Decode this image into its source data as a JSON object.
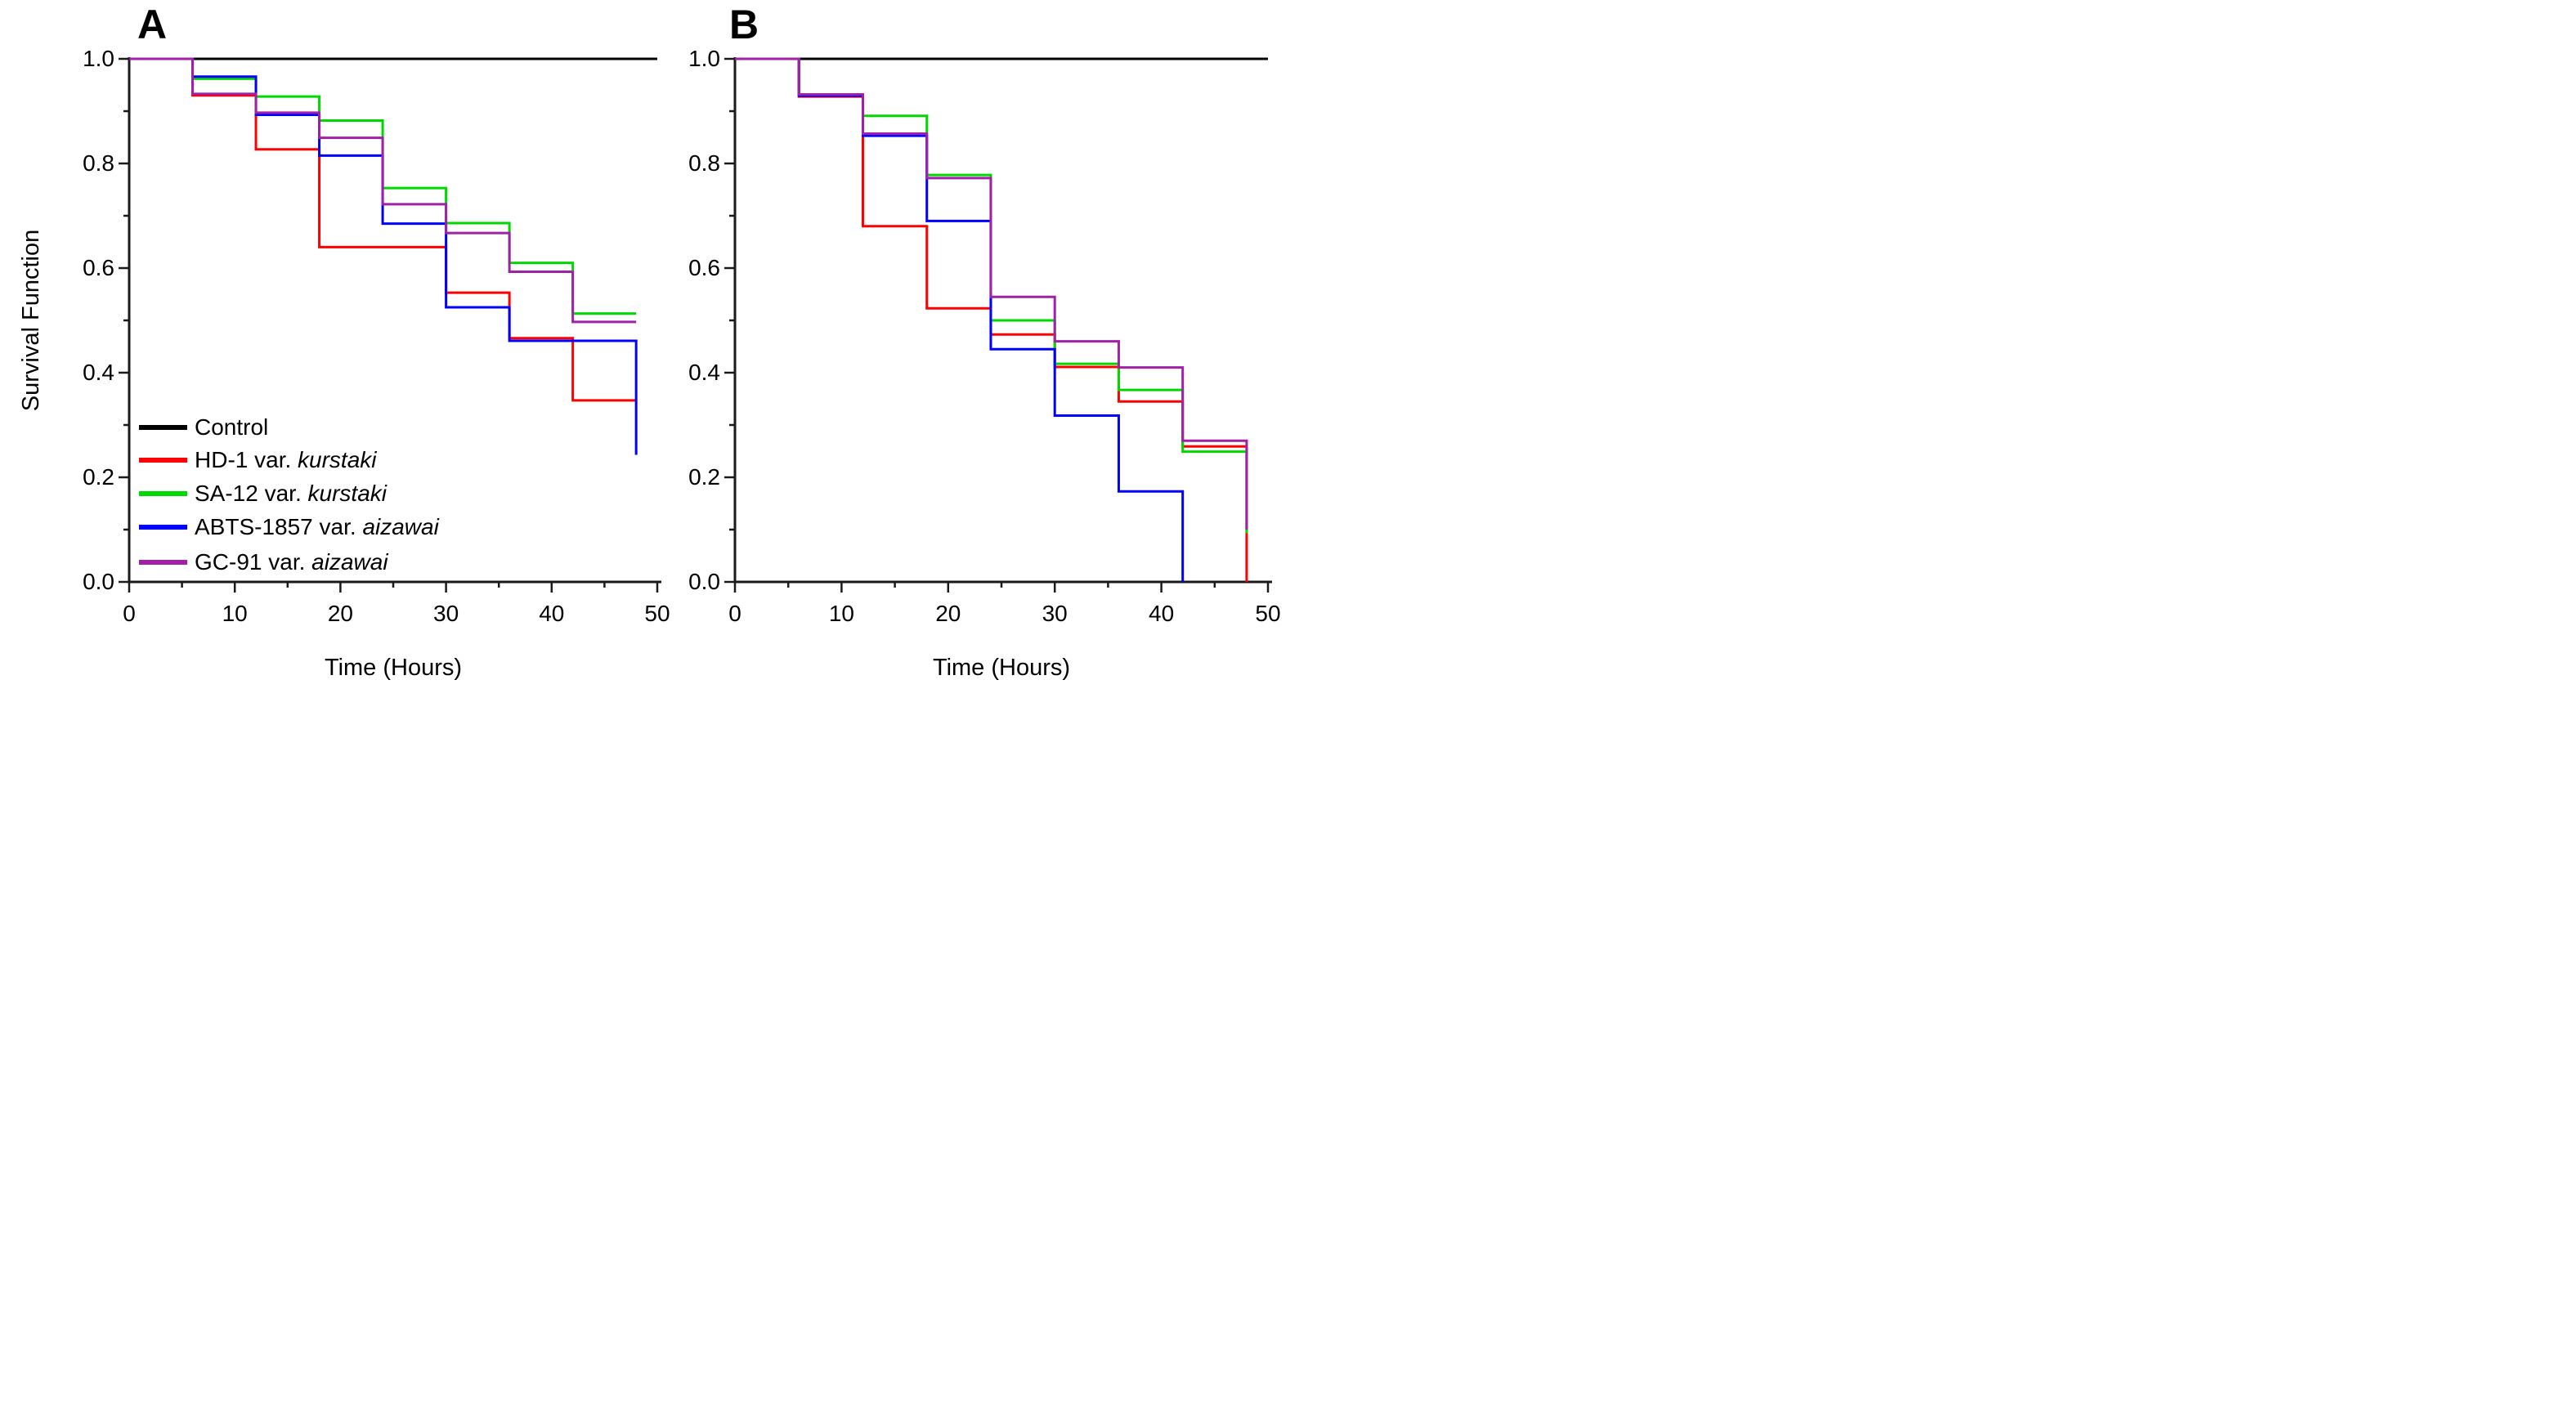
{
  "figure": {
    "ylabel": "Survival Function",
    "xlabel": "Time (Hours)",
    "background": "#ffffff"
  },
  "colors": {
    "control": "#000000",
    "hd1": "#ff0000",
    "sa12": "#00d900",
    "abts1857": "#0000ff",
    "gc91": "#a020a8",
    "axis": "#1a1a1a"
  },
  "axes": {
    "xlim": [
      0,
      50
    ],
    "ylim": [
      0.0,
      1.0
    ],
    "x_major_ticks": [
      {
        "v": 0,
        "label": "0"
      },
      {
        "v": 10,
        "label": "10"
      },
      {
        "v": 20,
        "label": "20"
      },
      {
        "v": 30,
        "label": "30"
      },
      {
        "v": 40,
        "label": "40"
      },
      {
        "v": 50,
        "label": "50"
      }
    ],
    "x_minor_ticks": [
      5,
      15,
      25,
      35,
      45
    ],
    "y_major_ticks": [
      {
        "v": 1.0,
        "label": "1.0"
      },
      {
        "v": 0.8,
        "label": "0.8"
      },
      {
        "v": 0.6,
        "label": "0.6"
      },
      {
        "v": 0.4,
        "label": "0.4"
      },
      {
        "v": 0.2,
        "label": "0.2"
      },
      {
        "v": 0.0,
        "label": "0.0"
      }
    ],
    "y_minor_ticks": [
      0.9,
      0.7,
      0.5,
      0.3,
      0.1
    ],
    "grid": false
  },
  "legend": {
    "position": "lower-left of panel A",
    "items": [
      {
        "prefix": "Control",
        "italic": "",
        "color_key": "control",
        "color": "#000000"
      },
      {
        "prefix": "HD-1 var. ",
        "italic": "kurstaki",
        "color_key": "hd1",
        "color": "#ff0000"
      },
      {
        "prefix": "SA-12 var. ",
        "italic": "kurstaki",
        "color_key": "sa12",
        "color": "#00d900"
      },
      {
        "prefix": "ABTS-1857 var. ",
        "italic": "aizawai",
        "color_key": "abts1857",
        "color": "#0000ff"
      },
      {
        "prefix": "GC-91 var. ",
        "italic": "aizawai",
        "color_key": "gc91",
        "color": "#a020a8"
      }
    ]
  },
  "chart_data": [
    {
      "type": "line",
      "subtype": "kaplan-meier-step",
      "panel_label": "A",
      "xlabel": "Time (Hours)",
      "ylabel": "Survival Function",
      "xlim": [
        0,
        50
      ],
      "ylim": [
        0.0,
        1.0
      ],
      "series": [
        {
          "name": "Control",
          "color_key": "control",
          "start": [
            0,
            1.0
          ],
          "steps": [],
          "end_time": 50
        },
        {
          "name": "HD-1 var. kurstaki",
          "color_key": "hd1",
          "start": [
            0,
            1.0
          ],
          "steps": [
            [
              6,
              0.93
            ],
            [
              12,
              0.827
            ],
            [
              18,
              0.64
            ],
            [
              30,
              0.553
            ],
            [
              36,
              0.466
            ],
            [
              42,
              0.347
            ]
          ],
          "end_time": 48
        },
        {
          "name": "SA-12 var. kurstaki",
          "color_key": "sa12",
          "start": [
            0,
            1.0
          ],
          "steps": [
            [
              6,
              0.962
            ],
            [
              12,
              0.928
            ],
            [
              18,
              0.882
            ],
            [
              24,
              0.753
            ],
            [
              30,
              0.686
            ],
            [
              36,
              0.61
            ],
            [
              42,
              0.513
            ]
          ],
          "end_time": 48
        },
        {
          "name": "ABTS-1857 var. aizawai",
          "color_key": "abts1857",
          "start": [
            0,
            1.0
          ],
          "steps": [
            [
              6,
              0.966
            ],
            [
              12,
              0.893
            ],
            [
              18,
              0.815
            ],
            [
              24,
              0.685
            ],
            [
              30,
              0.525
            ],
            [
              36,
              0.461
            ],
            [
              48,
              0.243
            ]
          ],
          "end_time": 48
        },
        {
          "name": "GC-91 var. aizawai",
          "color_key": "gc91",
          "start": [
            0,
            1.0
          ],
          "steps": [
            [
              6,
              0.933
            ],
            [
              12,
              0.897
            ],
            [
              18,
              0.849
            ],
            [
              24,
              0.722
            ],
            [
              30,
              0.667
            ],
            [
              36,
              0.593
            ],
            [
              42,
              0.497
            ]
          ],
          "end_time": 48
        }
      ]
    },
    {
      "type": "line",
      "subtype": "kaplan-meier-step",
      "panel_label": "B",
      "xlabel": "Time (Hours)",
      "ylabel": "Survival Function",
      "xlim": [
        0,
        50
      ],
      "ylim": [
        0.0,
        1.0
      ],
      "series": [
        {
          "name": "Control",
          "color_key": "control",
          "start": [
            0,
            1.0
          ],
          "steps": [],
          "end_time": 50
        },
        {
          "name": "HD-1 var. kurstaki",
          "color_key": "hd1",
          "start": [
            0,
            1.0
          ],
          "steps": [
            [
              6,
              0.928
            ],
            [
              12,
              0.68
            ],
            [
              18,
              0.523
            ],
            [
              24,
              0.473
            ],
            [
              30,
              0.411
            ],
            [
              36,
              0.345
            ],
            [
              42,
              0.259
            ],
            [
              48,
              0.0
            ]
          ],
          "end_time": 48
        },
        {
          "name": "SA-12 var. kurstaki",
          "color_key": "sa12",
          "start": [
            0,
            1.0
          ],
          "steps": [
            [
              6,
              0.93
            ],
            [
              12,
              0.891
            ],
            [
              18,
              0.778
            ],
            [
              24,
              0.5
            ],
            [
              30,
              0.417
            ],
            [
              36,
              0.367
            ],
            [
              42,
              0.249
            ],
            [
              48,
              0.093
            ]
          ],
          "end_time": 48
        },
        {
          "name": "ABTS-1857 var. aizawai",
          "color_key": "abts1857",
          "start": [
            0,
            1.0
          ],
          "steps": [
            [
              6,
              0.9295
            ],
            [
              12,
              0.853
            ],
            [
              18,
              0.69
            ],
            [
              24,
              0.445
            ],
            [
              30,
              0.318
            ],
            [
              36,
              0.173
            ],
            [
              42,
              0.0
            ]
          ],
          "end_time": 42
        },
        {
          "name": "GC-91 var. aizawai",
          "color_key": "gc91",
          "start": [
            0,
            1.0
          ],
          "steps": [
            [
              6,
              0.932
            ],
            [
              12,
              0.857
            ],
            [
              18,
              0.772
            ],
            [
              24,
              0.545
            ],
            [
              30,
              0.46
            ],
            [
              36,
              0.41
            ],
            [
              42,
              0.27
            ],
            [
              48,
              0.1
            ]
          ],
          "end_time": 48
        }
      ]
    }
  ]
}
